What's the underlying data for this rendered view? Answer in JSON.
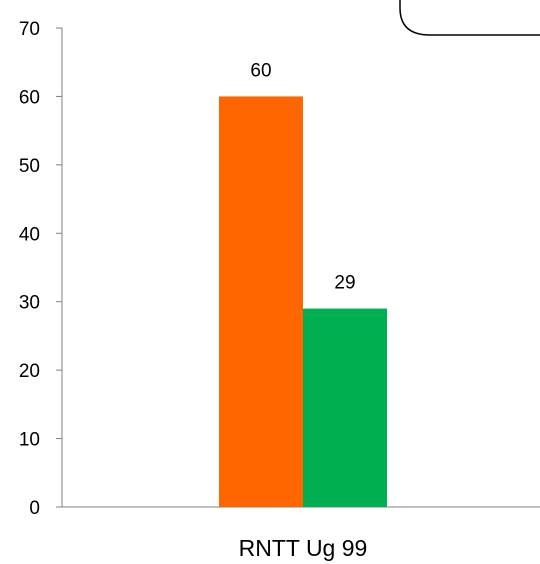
{
  "colors": {
    "series_0": "#ff6600",
    "series_1": "#00b050",
    "axis": "#808080"
  },
  "chart_data": {
    "type": "bar",
    "categories": [
      "RNTT Ug 99"
    ],
    "series": [
      {
        "values": [
          60
        ],
        "color": "#ff6600"
      },
      {
        "values": [
          29
        ],
        "color": "#00b050"
      }
    ],
    "yticks": [
      "0",
      "10",
      "20",
      "30",
      "40",
      "50",
      "60",
      "70"
    ],
    "ylim": [
      0,
      70
    ],
    "data_labels": [
      "60",
      "29"
    ],
    "grid": false,
    "legend": "none (partially visible shape at top-right)",
    "title": "",
    "xlabel": "",
    "ylabel": ""
  }
}
